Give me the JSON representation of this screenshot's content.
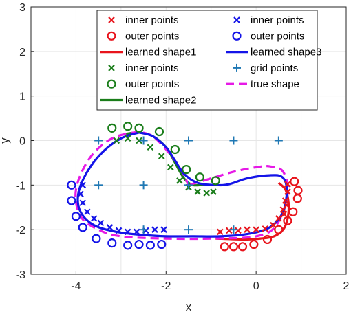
{
  "chart_data": {
    "type": "scatter",
    "title": "",
    "xlabel": "x",
    "ylabel": "y",
    "xlim": [
      -5,
      2
    ],
    "ylim": [
      -3,
      3
    ],
    "xticks": [
      -4,
      -2,
      0,
      2
    ],
    "yticks": [
      -3,
      -2,
      -1,
      0,
      1,
      2,
      3
    ],
    "grid": true,
    "legend_position": "top-right",
    "series": [
      {
        "name": "inner points",
        "kind": "x",
        "color": "#e8141c",
        "x": [
          -0.8,
          -0.6,
          -0.4,
          -0.2,
          0.0,
          0.2,
          0.38,
          0.5,
          0.6,
          0.65,
          0.7,
          0.7,
          0.68,
          0.62
        ],
        "y": [
          -2.05,
          -2.02,
          -2.02,
          -2.0,
          -2.0,
          -1.98,
          -1.9,
          -1.75,
          -1.55,
          -1.35,
          -1.15,
          -0.98,
          -1.45,
          -1.65
        ]
      },
      {
        "name": "outer points",
        "kind": "o",
        "color": "#e8141c",
        "x": [
          -0.7,
          -0.5,
          -0.3,
          -0.05,
          0.25,
          0.5,
          0.7,
          0.82,
          0.92,
          0.93,
          0.85
        ],
        "y": [
          -2.38,
          -2.38,
          -2.38,
          -2.33,
          -2.22,
          -2.0,
          -1.8,
          -1.6,
          -1.3,
          -1.12,
          -0.92
        ]
      },
      {
        "name": "learned shape1",
        "kind": "line",
        "color": "#e8141c",
        "x": [
          0.5,
          0.65,
          0.72,
          0.7,
          0.6,
          0.4,
          0.1,
          -0.3,
          -0.9
        ],
        "y": [
          -0.95,
          -1.1,
          -1.4,
          -1.75,
          -2.0,
          -2.15,
          -2.2,
          -2.22,
          -2.2
        ]
      },
      {
        "name": "inner points",
        "kind": "x",
        "color": "#1414e8",
        "x": [
          -3.85,
          -3.9,
          -3.85,
          -3.75,
          -3.6,
          -3.45,
          -3.25,
          -3.05,
          -2.85,
          -2.65,
          -2.45,
          -2.25,
          -2.05
        ],
        "y": [
          -1.0,
          -1.2,
          -1.4,
          -1.6,
          -1.75,
          -1.85,
          -1.95,
          -2.02,
          -2.05,
          -2.05,
          -2.02,
          -2.0,
          -2.0
        ]
      },
      {
        "name": "outer points",
        "kind": "o",
        "color": "#1414e8",
        "x": [
          -4.1,
          -4.1,
          -4.0,
          -3.85,
          -3.55,
          -3.2,
          -2.85,
          -2.6,
          -2.35,
          -2.1
        ],
        "y": [
          -1.0,
          -1.35,
          -1.7,
          -1.95,
          -2.2,
          -2.3,
          -2.35,
          -2.33,
          -2.35,
          -2.33
        ]
      },
      {
        "name": "learned shape3",
        "kind": "line",
        "color": "#1414e8",
        "x": [
          -2.6,
          -3.0,
          -3.4,
          -3.75,
          -3.95,
          -3.9,
          -3.6,
          -3.1,
          -2.5,
          -2.0,
          -1.4,
          -0.8,
          -0.2,
          0.3,
          0.6,
          0.68,
          0.58,
          0.3,
          -0.2,
          -0.6,
          -0.9,
          -1.3,
          -1.6,
          -1.8,
          -2.0,
          -2.3,
          -2.6
        ],
        "y": [
          0.18,
          0.05,
          -0.25,
          -0.7,
          -1.2,
          -1.6,
          -1.9,
          -2.05,
          -2.12,
          -2.15,
          -2.15,
          -2.15,
          -2.1,
          -1.95,
          -1.6,
          -1.1,
          -0.82,
          -0.78,
          -0.85,
          -0.98,
          -1.0,
          -0.95,
          -0.75,
          -0.45,
          -0.15,
          0.1,
          0.18
        ]
      },
      {
        "name": "inner points",
        "kind": "x",
        "color": "#1a7d1a",
        "x": [
          -3.1,
          -2.85,
          -2.6,
          -2.35,
          -2.1,
          -1.9,
          -1.7,
          -1.5,
          -1.3,
          -1.1,
          -0.95
        ],
        "y": [
          0.0,
          0.05,
          0.0,
          -0.15,
          -0.35,
          -0.6,
          -0.9,
          -1.05,
          -1.15,
          -1.18,
          -1.15
        ]
      },
      {
        "name": "outer points",
        "kind": "o",
        "color": "#1a7d1a",
        "x": [
          -3.2,
          -2.85,
          -2.6,
          -2.15,
          -1.8,
          -1.55,
          -1.25,
          -0.9
        ],
        "y": [
          0.28,
          0.32,
          0.28,
          0.2,
          -0.2,
          -0.65,
          -0.82,
          -0.9
        ]
      },
      {
        "name": "grid points",
        "kind": "+",
        "color": "#1f78b4",
        "x": [
          -3.5,
          -3.5,
          -2.5,
          -2.5,
          -1.5,
          -1.5,
          -0.5,
          0.5,
          -2.5,
          -0.5,
          -1.5
        ],
        "y": [
          0,
          -1,
          -1,
          0,
          0,
          -1,
          0,
          0,
          -2,
          -2,
          -2
        ]
      },
      {
        "name": "true shape",
        "kind": "dashed-line",
        "color": "#e619e6",
        "x": [
          -2.6,
          -3.2,
          -3.7,
          -4.0,
          -3.9,
          -3.5,
          -3.0,
          -2.0,
          -1.0,
          0.0,
          0.45,
          0.7,
          0.6,
          0.3,
          0.0,
          -0.5,
          -1.0,
          -1.5,
          -1.5,
          -1.7,
          -2.0,
          -2.3,
          -2.6
        ],
        "y": [
          0.2,
          0.05,
          -0.4,
          -1.1,
          -1.7,
          -2.0,
          -2.15,
          -2.2,
          -2.2,
          -2.15,
          -1.9,
          -1.2,
          -0.7,
          -0.58,
          -0.6,
          -0.7,
          -0.85,
          -1.0,
          -1.0,
          -0.6,
          -0.2,
          0.1,
          0.2
        ]
      },
      {
        "name": "learned shape2",
        "kind": "line",
        "color": "#1a7d1a",
        "x": [
          -2.9,
          -2.6,
          -2.3,
          -2.0,
          -1.8,
          -1.6,
          -1.4,
          -1.1
        ],
        "y": [
          0.15,
          0.18,
          0.1,
          -0.15,
          -0.5,
          -0.85,
          -1.0,
          -0.98
        ]
      }
    ],
    "legend": [
      {
        "label": "inner points",
        "series": 0
      },
      {
        "label": "inner points",
        "series": 3
      },
      {
        "label": "outer points",
        "series": 1
      },
      {
        "label": "outer points",
        "series": 4
      },
      {
        "label": "learned shape1",
        "series": 2
      },
      {
        "label": "learned shape3",
        "series": 5
      },
      {
        "label": "inner points",
        "series": 6
      },
      {
        "label": "grid points",
        "series": 8
      },
      {
        "label": "outer points",
        "series": 7
      },
      {
        "label": "true shape",
        "series": 9
      },
      {
        "label": "learned shape2",
        "series": 10
      }
    ]
  }
}
